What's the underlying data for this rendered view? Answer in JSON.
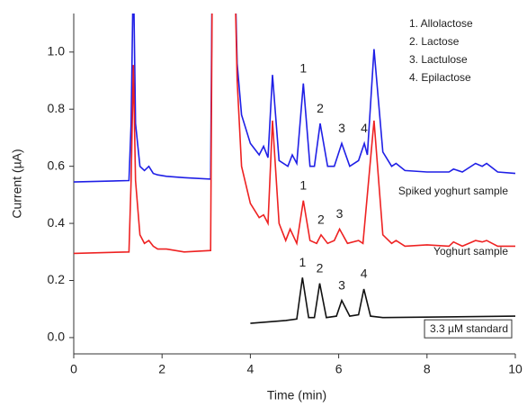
{
  "chart_data": {
    "type": "line",
    "x_label": "Time (min)",
    "y_label": "Current (µA)",
    "xlim": [
      0,
      10
    ],
    "ylim": [
      -0.057,
      1.135
    ],
    "xticks": [
      0,
      2,
      4,
      6,
      8,
      10
    ],
    "yticks": [
      {
        "value": 0,
        "label": "0.0"
      },
      0.2,
      0.4,
      0.6,
      0.8,
      {
        "value": 1,
        "label": "1.0"
      }
    ],
    "compound_legend": [
      "1. Allolactose",
      "2. Lactose",
      "3. Lactulose",
      "4. Epilactose"
    ],
    "series": [
      {
        "name": "Spiked yoghurt sample",
        "color": "#1f1fe6",
        "x": [
          0,
          1.25,
          1.3,
          1.35,
          1.4,
          1.5,
          1.6,
          1.7,
          1.8,
          1.9,
          2.1,
          2.5,
          3.1,
          3.15,
          3.6,
          3.7,
          3.8,
          4.0,
          4.2,
          4.3,
          4.4,
          4.5,
          4.65,
          4.85,
          4.95,
          5.05,
          5.2,
          5.35,
          5.45,
          5.58,
          5.75,
          5.9,
          6.07,
          6.25,
          6.45,
          6.58,
          6.65,
          6.8,
          7.0,
          7.2,
          7.3,
          7.5,
          8.0,
          8.5,
          8.6,
          8.8,
          9.1,
          9.25,
          9.35,
          9.6,
          10
        ],
        "values": [
          0.545,
          0.55,
          0.75,
          1.3,
          0.75,
          0.6,
          0.585,
          0.6,
          0.575,
          0.57,
          0.565,
          0.56,
          0.555,
          1.6,
          1.6,
          0.96,
          0.78,
          0.68,
          0.64,
          0.67,
          0.63,
          0.92,
          0.62,
          0.6,
          0.64,
          0.61,
          0.89,
          0.6,
          0.6,
          0.75,
          0.6,
          0.6,
          0.68,
          0.6,
          0.62,
          0.68,
          0.64,
          1.01,
          0.65,
          0.6,
          0.61,
          0.585,
          0.58,
          0.58,
          0.59,
          0.58,
          0.61,
          0.6,
          0.61,
          0.58,
          0.575
        ],
        "peaks": [
          {
            "label": "1",
            "x": 5.2
          },
          {
            "label": "2",
            "x": 5.58
          },
          {
            "label": "3",
            "x": 6.07
          },
          {
            "label": "4",
            "x": 6.58
          }
        ]
      },
      {
        "name": "Yoghurt sample",
        "color": "#ee2222",
        "x": [
          0,
          1.25,
          1.3,
          1.35,
          1.4,
          1.5,
          1.6,
          1.7,
          1.8,
          1.9,
          2.1,
          2.5,
          3.1,
          3.15,
          3.6,
          3.7,
          3.8,
          4.0,
          4.2,
          4.3,
          4.4,
          4.5,
          4.65,
          4.8,
          4.9,
          5.05,
          5.2,
          5.35,
          5.5,
          5.6,
          5.75,
          5.9,
          6.02,
          6.2,
          6.45,
          6.55,
          6.8,
          7.0,
          7.2,
          7.3,
          7.5,
          8.0,
          8.5,
          8.6,
          8.8,
          9.1,
          9.25,
          9.35,
          9.6,
          10
        ],
        "values": [
          0.295,
          0.3,
          0.55,
          0.955,
          0.55,
          0.36,
          0.33,
          0.34,
          0.32,
          0.31,
          0.31,
          0.3,
          0.305,
          1.6,
          1.6,
          0.9,
          0.6,
          0.47,
          0.42,
          0.43,
          0.4,
          0.76,
          0.4,
          0.34,
          0.38,
          0.33,
          0.48,
          0.34,
          0.33,
          0.36,
          0.33,
          0.34,
          0.38,
          0.33,
          0.34,
          0.33,
          0.76,
          0.36,
          0.33,
          0.34,
          0.32,
          0.325,
          0.32,
          0.335,
          0.32,
          0.34,
          0.335,
          0.34,
          0.32,
          0.32
        ],
        "peaks": [
          {
            "label": "1",
            "x": 5.2
          },
          {
            "label": "2",
            "x": 5.6
          },
          {
            "label": "3",
            "x": 6.02
          }
        ]
      },
      {
        "name": "3.3 µM standard",
        "color": "#111111",
        "x": [
          4,
          4.8,
          5.05,
          5.18,
          5.32,
          5.45,
          5.57,
          5.72,
          5.95,
          6.07,
          6.25,
          6.45,
          6.57,
          6.72,
          7,
          10
        ],
        "values": [
          0.05,
          0.06,
          0.065,
          0.21,
          0.07,
          0.07,
          0.19,
          0.07,
          0.075,
          0.13,
          0.075,
          0.08,
          0.17,
          0.075,
          0.07,
          0.075
        ],
        "peaks": [
          {
            "label": "1",
            "x": 5.18
          },
          {
            "label": "2",
            "x": 5.57
          },
          {
            "label": "3",
            "x": 6.07
          },
          {
            "label": "4",
            "x": 6.57
          }
        ]
      }
    ]
  }
}
